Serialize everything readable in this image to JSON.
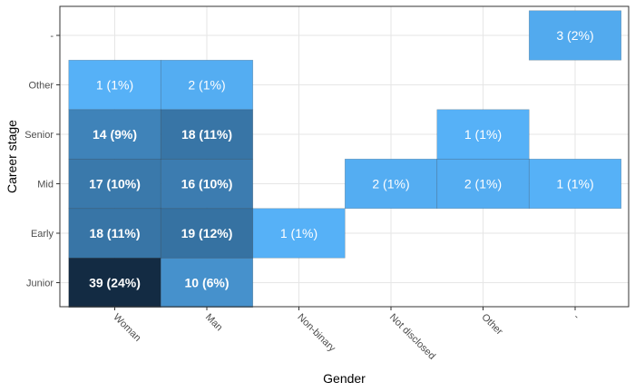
{
  "chart_data": {
    "type": "heatmap",
    "xlabel": "Gender",
    "ylabel": "Career stage",
    "x_categories": [
      "Woman",
      "Man",
      "Non-binary",
      "Not disclosed",
      "Other",
      "-"
    ],
    "y_categories": [
      "Junior",
      "Early",
      "Mid",
      "Senior",
      "Other",
      "-"
    ],
    "grid": true,
    "legend": "none",
    "color_low": "#56B1F7",
    "color_high": "#132B43",
    "cells": [
      {
        "x": "Woman",
        "y": "Junior",
        "count": 39,
        "label": "39 (24%)"
      },
      {
        "x": "Man",
        "y": "Junior",
        "count": 10,
        "label": "10 (6%)"
      },
      {
        "x": "Woman",
        "y": "Early",
        "count": 18,
        "label": "18 (11%)"
      },
      {
        "x": "Man",
        "y": "Early",
        "count": 19,
        "label": "19 (12%)"
      },
      {
        "x": "Non-binary",
        "y": "Early",
        "count": 1,
        "label": "1 (1%)"
      },
      {
        "x": "Woman",
        "y": "Mid",
        "count": 17,
        "label": "17 (10%)"
      },
      {
        "x": "Man",
        "y": "Mid",
        "count": 16,
        "label": "16 (10%)"
      },
      {
        "x": "Not disclosed",
        "y": "Mid",
        "count": 2,
        "label": "2 (1%)"
      },
      {
        "x": "Other",
        "y": "Mid",
        "count": 2,
        "label": "2 (1%)"
      },
      {
        "x": "-",
        "y": "Mid",
        "count": 1,
        "label": "1 (1%)"
      },
      {
        "x": "Woman",
        "y": "Senior",
        "count": 14,
        "label": "14 (9%)"
      },
      {
        "x": "Man",
        "y": "Senior",
        "count": 18,
        "label": "18 (11%)"
      },
      {
        "x": "Other",
        "y": "Senior",
        "count": 1,
        "label": "1 (1%)"
      },
      {
        "x": "Woman",
        "y": "Other",
        "count": 1,
        "label": "1 (1%)"
      },
      {
        "x": "Man",
        "y": "Other",
        "count": 2,
        "label": "2 (1%)"
      },
      {
        "x": "-",
        "y": "-",
        "count": 3,
        "label": "3 (2%)"
      }
    ]
  }
}
